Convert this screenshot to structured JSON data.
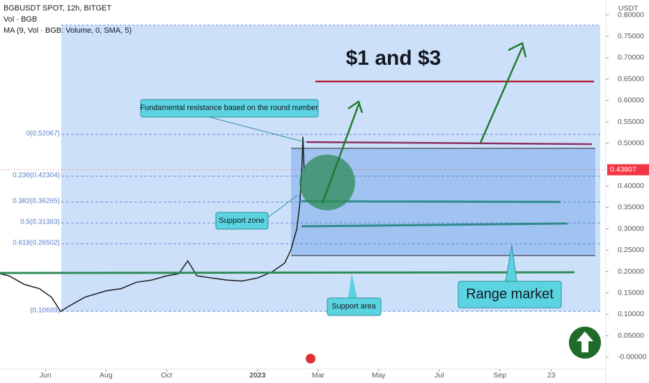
{
  "chart_data": {
    "type": "line",
    "title": "BGBUSDT SPOT, 12h, BITGET",
    "indicators": [
      "Vol · BGB",
      "MA (9, Vol · BGB: Volume, 0, SMA, 5)"
    ],
    "y_axis_label": "USDT",
    "color": "#1a1a1a",
    "x": [
      -0.5,
      -0.2,
      0.3,
      0.8,
      1.2,
      1.5,
      1.8,
      2.3,
      3,
      3.5,
      4,
      4.5,
      5,
      5.4,
      5.7,
      6,
      6.5,
      7,
      7.5,
      8,
      8.5,
      8.9,
      9.1,
      9.3,
      9.4,
      9.47,
      9.5,
      9.54
    ],
    "values": [
      0.195,
      0.19,
      0.17,
      0.16,
      0.14,
      0.107,
      0.12,
      0.14,
      0.155,
      0.16,
      0.175,
      0.18,
      0.19,
      0.195,
      0.225,
      0.19,
      0.185,
      0.18,
      0.178,
      0.185,
      0.2,
      0.22,
      0.25,
      0.3,
      0.36,
      0.45,
      0.515,
      0.43807
    ],
    "last_price": 0.43807,
    "xlim": [
      -0.5,
      19.5
    ],
    "xticks": [
      {
        "value": 1,
        "label": "Jun"
      },
      {
        "value": 3,
        "label": "Aug"
      },
      {
        "value": 5,
        "label": "Oct"
      },
      {
        "value": 8,
        "label": "2023"
      },
      {
        "value": 10,
        "label": "Mar"
      },
      {
        "value": 12,
        "label": "May"
      },
      {
        "value": 14,
        "label": "Jul"
      },
      {
        "value": 16,
        "label": "Sep"
      },
      {
        "value": 17.7,
        "label": "23"
      }
    ],
    "ylim": [
      -0.028,
      0.835
    ],
    "yticks": [
      {
        "value": 0.8,
        "label": "0.80000"
      },
      {
        "value": 0.75,
        "label": "0.75000"
      },
      {
        "value": 0.7,
        "label": "0.70000"
      },
      {
        "value": 0.65,
        "label": "0.65000"
      },
      {
        "value": 0.6,
        "label": "0.60000"
      },
      {
        "value": 0.55,
        "label": "0.55000"
      },
      {
        "value": 0.5,
        "label": "0.50000"
      },
      {
        "value": 0.4,
        "label": "0.40000"
      },
      {
        "value": 0.35,
        "label": "0.35000"
      },
      {
        "value": 0.3,
        "label": "0.30000"
      },
      {
        "value": 0.25,
        "label": "0.25000"
      },
      {
        "value": 0.2,
        "label": "0.20000"
      },
      {
        "value": 0.15,
        "label": "0.15000"
      },
      {
        "value": 0.1,
        "label": "0.10000"
      },
      {
        "value": 0.05,
        "label": "0.05000"
      },
      {
        "value": 0,
        "label": "-0.00000"
      }
    ],
    "fib_levels": [
      {
        "value": 0.52067,
        "label": "0(0.52067)"
      },
      {
        "value": 0.42304,
        "label": "0.236(0.42304)"
      },
      {
        "value": 0.36265,
        "label": "0.382(0.36265)"
      },
      {
        "value": 0.31383,
        "label": "0.5(0.31383)"
      },
      {
        "value": 0.26502,
        "label": "0.618(0.26502)"
      },
      {
        "value": 0.10699,
        "label": "(0.10699)"
      }
    ],
    "annotations": {
      "resistance": "Fundamental resistance based on the round number",
      "support_zone": "Support zone",
      "support_area": "Support area",
      "range": "Range market",
      "targets": "$1 and $3"
    }
  }
}
